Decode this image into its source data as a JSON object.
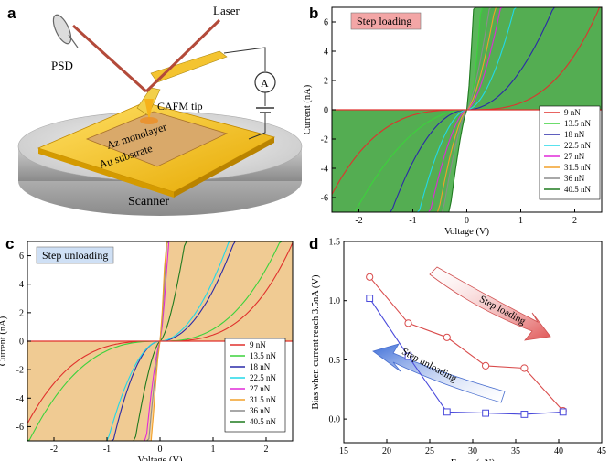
{
  "panels": {
    "a": {
      "letter": "a",
      "labels": {
        "psd": "PSD",
        "laser": "Laser",
        "ammeter": "A",
        "tip": "CAFM tip",
        "monolayer": "Az monolayer",
        "substrate": "Au substrate",
        "scanner": "Scanner"
      }
    },
    "b": {
      "letter": "b"
    },
    "c": {
      "letter": "c"
    },
    "d": {
      "letter": "d"
    }
  },
  "colors": {
    "9 nN": "#e0312d",
    "13.5 nN": "#3cd23c",
    "18 nN": "#2a2aa8",
    "22.5 nN": "#22d8e8",
    "27 nN": "#e02ad8",
    "31.5 nN": "#f2a02a",
    "36 nN": "#8c8c8c",
    "40.5 nN": "#1f7a1f",
    "fill": {
      "9 nN": "#f4a7a5",
      "13.5 nN": "#8fe98f",
      "18 nN": "#b7b2ef",
      "22.5 nN": "#a8f0f6",
      "27 nN": "#f39cee",
      "31.5 nN": "#f7cc8a",
      "36 nN": "#c5c5c5",
      "40.5 nN": "#3ea83e"
    },
    "loading": "#d94c4c",
    "unloading": "#4a4adb"
  },
  "chart_data": [
    {
      "panel": "b",
      "type": "line",
      "title": "Step loading",
      "xlabel": "Voltage (V)",
      "ylabel": "Current (nA)",
      "xlim": [
        -2.5,
        2.5
      ],
      "ylim": [
        -7,
        7
      ],
      "xticks": [
        -2,
        -1,
        0,
        1,
        2
      ],
      "yticks": [
        -6,
        -4,
        -2,
        0,
        2,
        4,
        6
      ],
      "legend_position": "right",
      "series": [
        {
          "name": "9 nN",
          "vp": 2.4,
          "vn": -2.6,
          "curve": 3.0
        },
        {
          "name": "13.5 nN",
          "vp": 0.25,
          "vn": -2.0,
          "curve": 2.0
        },
        {
          "name": "18 nN",
          "vp": 1.55,
          "vn": -1.35,
          "curve": 2.0
        },
        {
          "name": "22.5 nN",
          "vp": 0.85,
          "vn": -0.85,
          "curve": 1.8
        },
        {
          "name": "27 nN",
          "vp": 0.6,
          "vn": -0.65,
          "curve": 1.6
        },
        {
          "name": "31.5 nN",
          "vp": 0.5,
          "vn": -0.5,
          "curve": 1.5
        },
        {
          "name": "36 nN",
          "vp": 0.4,
          "vn": -0.42,
          "curve": 1.4
        },
        {
          "name": "40.5 nN",
          "vp": 0.12,
          "vn": -0.3,
          "curve": 1.3
        }
      ]
    },
    {
      "panel": "c",
      "type": "line",
      "title": "Step unloading",
      "xlabel": "Voltage (V)",
      "ylabel": "Current (nA)",
      "xlim": [
        -2.5,
        2.5
      ],
      "ylim": [
        -7,
        7
      ],
      "xticks": [
        -2,
        -1,
        0,
        1,
        2
      ],
      "yticks": [
        -6,
        -4,
        -2,
        0,
        2,
        4,
        6
      ],
      "legend_position": "right",
      "series": [
        {
          "name": "9 nN",
          "vp": 2.45,
          "vn": -2.6,
          "curve": 3.0
        },
        {
          "name": "13.5 nN",
          "vp": 2.2,
          "vn": -2.4,
          "curve": 2.6
        },
        {
          "name": "18 nN",
          "vp": 1.35,
          "vn": -0.85,
          "curve": 2.0
        },
        {
          "name": "22.5 nN",
          "vp": 1.25,
          "vn": -0.95,
          "curve": 1.9
        },
        {
          "name": "27 nN",
          "vp": 0.15,
          "vn": -0.25,
          "curve": 1.4
        },
        {
          "name": "31.5 nN",
          "vp": 0.1,
          "vn": -0.15,
          "curve": 1.3
        },
        {
          "name": "36 nN",
          "vp": 0.12,
          "vn": -0.2,
          "curve": 1.3
        },
        {
          "name": "40.5 nN",
          "vp": 0.45,
          "vn": -0.45,
          "curve": 1.5
        }
      ]
    },
    {
      "panel": "d",
      "type": "line",
      "xlabel": "Force (nN)",
      "ylabel": "Bias when current reach 3.5nA (V)",
      "xlim": [
        15,
        45
      ],
      "ylim": [
        -0.2,
        1.5
      ],
      "xticks": [
        15,
        20,
        25,
        30,
        35,
        40,
        45
      ],
      "yticks": [
        0.0,
        0.5,
        1.0,
        1.5
      ],
      "series": [
        {
          "name": "Step loading",
          "marker": "circle",
          "x": [
            18,
            22.5,
            27,
            31.5,
            36,
            40.5
          ],
          "y": [
            1.2,
            0.81,
            0.69,
            0.45,
            0.43,
            0.07
          ]
        },
        {
          "name": "Step unloading",
          "marker": "square",
          "x": [
            18,
            22.5,
            27,
            31.5,
            36,
            40.5
          ],
          "y": [
            1.02,
            0.53,
            0.06,
            0.05,
            0.04,
            0.06
          ]
        }
      ],
      "annotations": [
        "Step loading",
        "Step unloading"
      ]
    }
  ]
}
